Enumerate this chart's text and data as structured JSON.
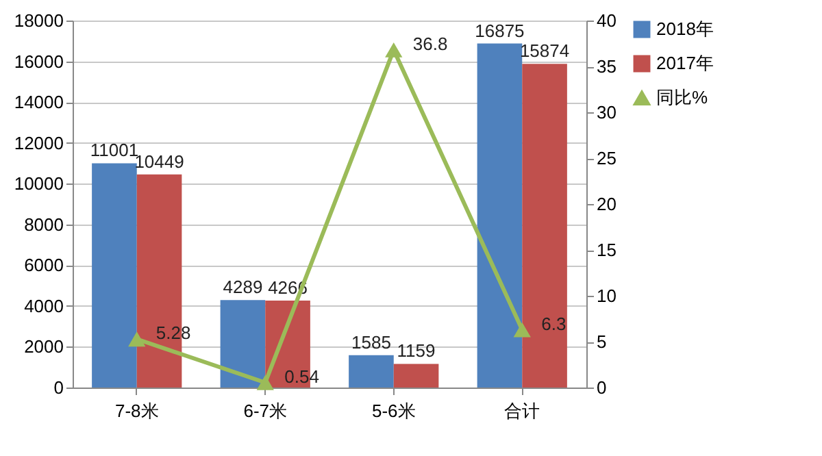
{
  "chart_data": {
    "type": "bar",
    "categories": [
      "7-8米",
      "6-7米",
      "5-6米",
      "合计"
    ],
    "series": [
      {
        "name": "2018年",
        "color": "#4f81bd",
        "values": [
          11001,
          4289,
          1585,
          16875
        ]
      },
      {
        "name": "2017年",
        "color": "#c0504d",
        "values": [
          10449,
          4266,
          1159,
          15874
        ]
      },
      {
        "name": "同比%",
        "type": "line",
        "axis": "y2",
        "color": "#9bbb59",
        "values": [
          5.28,
          0.54,
          36.8,
          6.3
        ]
      }
    ],
    "ylim": [
      0,
      18000
    ],
    "yticks": [
      0,
      2000,
      4000,
      6000,
      8000,
      10000,
      12000,
      14000,
      16000,
      18000
    ],
    "y2lim": [
      0,
      40
    ],
    "y2ticks": [
      0,
      5,
      10,
      15,
      20,
      25,
      30,
      35,
      40
    ],
    "grid": "y",
    "legend": "right",
    "marker": "triangle",
    "line_style": "solid",
    "data_labels": true
  }
}
